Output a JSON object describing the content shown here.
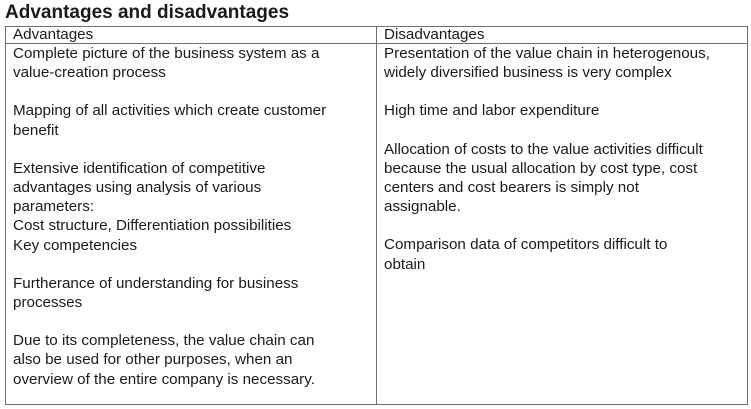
{
  "document": {
    "title": "Advantages and disadvantages",
    "table": {
      "headers": [
        "Advantages",
        "Disadvantages"
      ],
      "advantages": [
        [
          "Complete picture of the business system as a",
          "value-creation process"
        ],
        [
          "Mapping of all activities which create customer",
          "benefit"
        ],
        [
          "Extensive identification of competitive",
          "advantages using analysis of various",
          "parameters:",
          "Cost structure, Differentiation possibilities",
          "Key competencies"
        ],
        [
          "Furtherance of understanding for business",
          "processes"
        ],
        [
          "Due to its completeness, the value chain can",
          "also be used for other purposes, when an",
          "overview of the entire company is necessary."
        ]
      ],
      "disadvantages": [
        [
          "Presentation of the value chain in heterogenous,",
          "widely diversified business is very complex"
        ],
        [
          "High time and labor expenditure"
        ],
        [
          "Allocation of costs to the value activities difficult",
          "because the usual allocation by cost type, cost",
          "centers and cost bearers is simply not",
          "assignable."
        ],
        [
          "Comparison data of competitors difficult to",
          "obtain"
        ]
      ]
    }
  }
}
